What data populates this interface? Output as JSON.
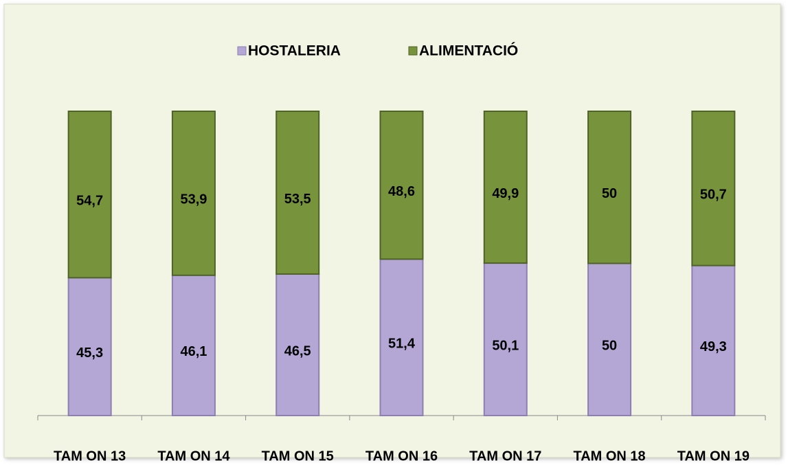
{
  "chart_data": {
    "type": "stacked_bar",
    "categories": [
      "TAM ON 13",
      "TAM ON 14",
      "TAM ON 15",
      "TAM ON 16",
      "TAM ON 17",
      "TAM ON 18",
      "TAM ON 19"
    ],
    "series": [
      {
        "name": "HOSTALERIA",
        "color": "#b4a7d6",
        "values": [
          45.3,
          46.1,
          46.5,
          51.4,
          50.1,
          50,
          49.3
        ],
        "value_labels": [
          "45,3",
          "46,1",
          "46,5",
          "51,4",
          "50,1",
          "50",
          "49,3"
        ]
      },
      {
        "name": "ALIMENTACIÓ",
        "color": "#77933c",
        "values": [
          54.7,
          53.9,
          53.5,
          48.6,
          49.9,
          50,
          50.7
        ],
        "value_labels": [
          "54,7",
          "53,9",
          "53,5",
          "48,6",
          "49,9",
          "50",
          "50,7"
        ]
      }
    ],
    "ylim": [
      0,
      100
    ],
    "legend": "top"
  }
}
